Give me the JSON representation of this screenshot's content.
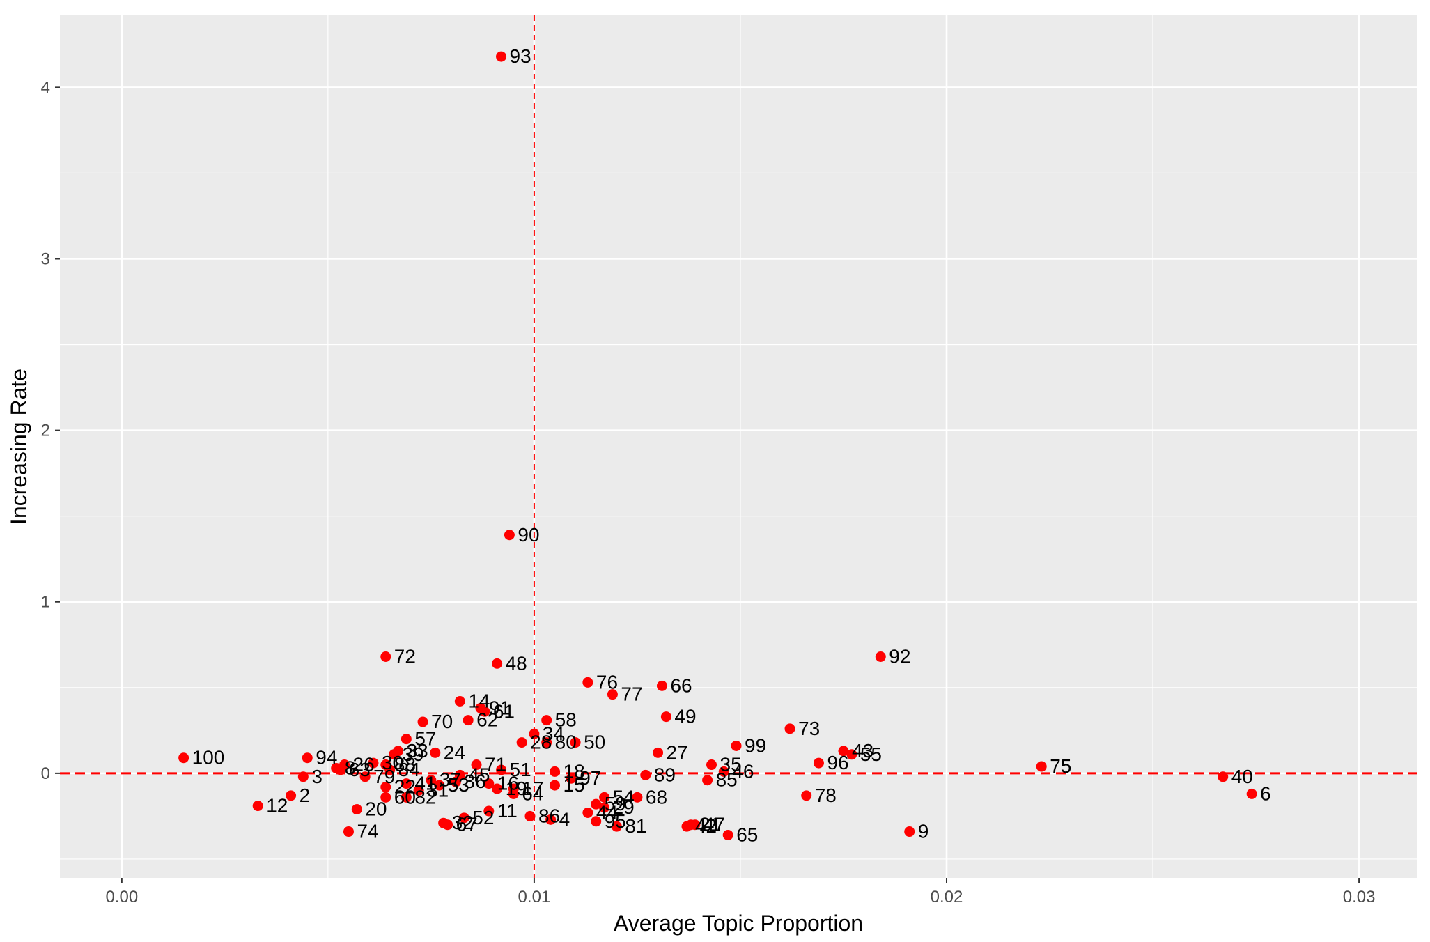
{
  "chart_data": {
    "type": "scatter",
    "title": "",
    "xlabel": "Average Topic Proportion",
    "ylabel": "Increasing Rate",
    "xlim": [
      -0.0015,
      0.0314
    ],
    "ylim": [
      -0.61,
      4.42
    ],
    "x_ticks": [
      0.0,
      0.01,
      0.02,
      0.03
    ],
    "x_tick_labels": [
      "0.00",
      "0.01",
      "0.02",
      "0.03"
    ],
    "y_ticks": [
      0,
      1,
      2,
      3,
      4
    ],
    "y_tick_labels": [
      "0",
      "1",
      "2",
      "3",
      "4"
    ],
    "grid": true,
    "panel_color": "#ebebeb",
    "point_color": "#ff0000",
    "reference_lines": {
      "vertical_x": 0.01,
      "horizontal_y": 0,
      "color": "#ff0000",
      "style": "dashed"
    },
    "points": [
      {
        "label": "93",
        "x": 0.0092,
        "y": 4.18
      },
      {
        "label": "90",
        "x": 0.0094,
        "y": 1.39
      },
      {
        "label": "72",
        "x": 0.0064,
        "y": 0.68
      },
      {
        "label": "48",
        "x": 0.0091,
        "y": 0.64
      },
      {
        "label": "92",
        "x": 0.0184,
        "y": 0.68
      },
      {
        "label": "76",
        "x": 0.0113,
        "y": 0.53
      },
      {
        "label": "66",
        "x": 0.0131,
        "y": 0.51
      },
      {
        "label": "77",
        "x": 0.0119,
        "y": 0.46
      },
      {
        "label": "14",
        "x": 0.0082,
        "y": 0.42
      },
      {
        "label": "91",
        "x": 0.0087,
        "y": 0.38
      },
      {
        "label": "61",
        "x": 0.0088,
        "y": 0.36
      },
      {
        "label": "49",
        "x": 0.0132,
        "y": 0.33
      },
      {
        "label": "62",
        "x": 0.0084,
        "y": 0.31
      },
      {
        "label": "58",
        "x": 0.0103,
        "y": 0.31
      },
      {
        "label": "70",
        "x": 0.0073,
        "y": 0.3
      },
      {
        "label": "73",
        "x": 0.0162,
        "y": 0.26
      },
      {
        "label": "34",
        "x": 0.01,
        "y": 0.23
      },
      {
        "label": "57",
        "x": 0.0069,
        "y": 0.2
      },
      {
        "label": "28",
        "x": 0.0097,
        "y": 0.18
      },
      {
        "label": "80",
        "x": 0.0103,
        "y": 0.18
      },
      {
        "label": "50",
        "x": 0.011,
        "y": 0.18
      },
      {
        "label": "99",
        "x": 0.0149,
        "y": 0.16
      },
      {
        "label": "33",
        "x": 0.0067,
        "y": 0.13
      },
      {
        "label": "24",
        "x": 0.0076,
        "y": 0.12
      },
      {
        "label": "27",
        "x": 0.013,
        "y": 0.12
      },
      {
        "label": "43",
        "x": 0.0175,
        "y": 0.13
      },
      {
        "label": "55",
        "x": 0.0177,
        "y": 0.11
      },
      {
        "label": "39",
        "x": 0.0066,
        "y": 0.11
      },
      {
        "label": "100",
        "x": 0.0015,
        "y": 0.09
      },
      {
        "label": "94",
        "x": 0.0045,
        "y": 0.09
      },
      {
        "label": "96",
        "x": 0.0169,
        "y": 0.06
      },
      {
        "label": "71",
        "x": 0.0086,
        "y": 0.05
      },
      {
        "label": "75",
        "x": 0.0223,
        "y": 0.04
      },
      {
        "label": "35",
        "x": 0.0143,
        "y": 0.05
      },
      {
        "label": "26",
        "x": 0.0054,
        "y": 0.05
      },
      {
        "label": "30",
        "x": 0.0061,
        "y": 0.06
      },
      {
        "label": "88",
        "x": 0.0064,
        "y": 0.05
      },
      {
        "label": "8",
        "x": 0.0052,
        "y": 0.03
      },
      {
        "label": "63",
        "x": 0.0053,
        "y": 0.02
      },
      {
        "label": "84",
        "x": 0.0065,
        "y": 0.02
      },
      {
        "label": "51",
        "x": 0.0092,
        "y": 0.02
      },
      {
        "label": "18",
        "x": 0.0105,
        "y": 0.01
      },
      {
        "label": "46",
        "x": 0.0146,
        "y": 0.01
      },
      {
        "label": "89",
        "x": 0.0127,
        "y": -0.01
      },
      {
        "label": "45",
        "x": 0.0082,
        "y": -0.01
      },
      {
        "label": "40",
        "x": 0.0267,
        "y": -0.02
      },
      {
        "label": "3",
        "x": 0.0044,
        "y": -0.02
      },
      {
        "label": "79",
        "x": 0.0059,
        "y": -0.02
      },
      {
        "label": "97",
        "x": 0.0109,
        "y": -0.03
      },
      {
        "label": "85",
        "x": 0.0142,
        "y": -0.04
      },
      {
        "label": "37",
        "x": 0.0075,
        "y": -0.04
      },
      {
        "label": "36",
        "x": 0.0081,
        "y": -0.05
      },
      {
        "label": "41",
        "x": 0.0069,
        "y": -0.06
      },
      {
        "label": "16",
        "x": 0.0089,
        "y": -0.06
      },
      {
        "label": "15",
        "x": 0.0105,
        "y": -0.07
      },
      {
        "label": "53",
        "x": 0.0077,
        "y": -0.07
      },
      {
        "label": "22",
        "x": 0.0064,
        "y": -0.08
      },
      {
        "label": "17",
        "x": 0.0095,
        "y": -0.09
      },
      {
        "label": "19",
        "x": 0.0091,
        "y": -0.09
      },
      {
        "label": "31",
        "x": 0.0072,
        "y": -0.1
      },
      {
        "label": "64",
        "x": 0.0095,
        "y": -0.12
      },
      {
        "label": "2",
        "x": 0.0041,
        "y": -0.13
      },
      {
        "label": "6",
        "x": 0.0274,
        "y": -0.12
      },
      {
        "label": "78",
        "x": 0.0166,
        "y": -0.13
      },
      {
        "label": "68",
        "x": 0.0125,
        "y": -0.14
      },
      {
        "label": "54",
        "x": 0.0117,
        "y": -0.14
      },
      {
        "label": "60",
        "x": 0.0064,
        "y": -0.14
      },
      {
        "label": "82",
        "x": 0.0069,
        "y": -0.14
      },
      {
        "label": "59",
        "x": 0.0115,
        "y": -0.18
      },
      {
        "label": "12",
        "x": 0.0033,
        "y": -0.19
      },
      {
        "label": "29",
        "x": 0.0117,
        "y": -0.2
      },
      {
        "label": "20",
        "x": 0.0057,
        "y": -0.21
      },
      {
        "label": "11",
        "x": 0.0089,
        "y": -0.22
      },
      {
        "label": "44",
        "x": 0.0113,
        "y": -0.23
      },
      {
        "label": "86",
        "x": 0.0099,
        "y": -0.25
      },
      {
        "label": "52",
        "x": 0.0083,
        "y": -0.26
      },
      {
        "label": "4",
        "x": 0.0104,
        "y": -0.27
      },
      {
        "label": "95",
        "x": 0.0115,
        "y": -0.28
      },
      {
        "label": "32",
        "x": 0.0078,
        "y": -0.29
      },
      {
        "label": "67",
        "x": 0.0079,
        "y": -0.3
      },
      {
        "label": "81",
        "x": 0.012,
        "y": -0.31
      },
      {
        "label": "21",
        "x": 0.0138,
        "y": -0.3
      },
      {
        "label": "42",
        "x": 0.0137,
        "y": -0.31
      },
      {
        "label": "47",
        "x": 0.0139,
        "y": -0.3
      },
      {
        "label": "9",
        "x": 0.0191,
        "y": -0.34
      },
      {
        "label": "74",
        "x": 0.0055,
        "y": -0.34
      },
      {
        "label": "65",
        "x": 0.0147,
        "y": -0.36
      }
    ]
  }
}
